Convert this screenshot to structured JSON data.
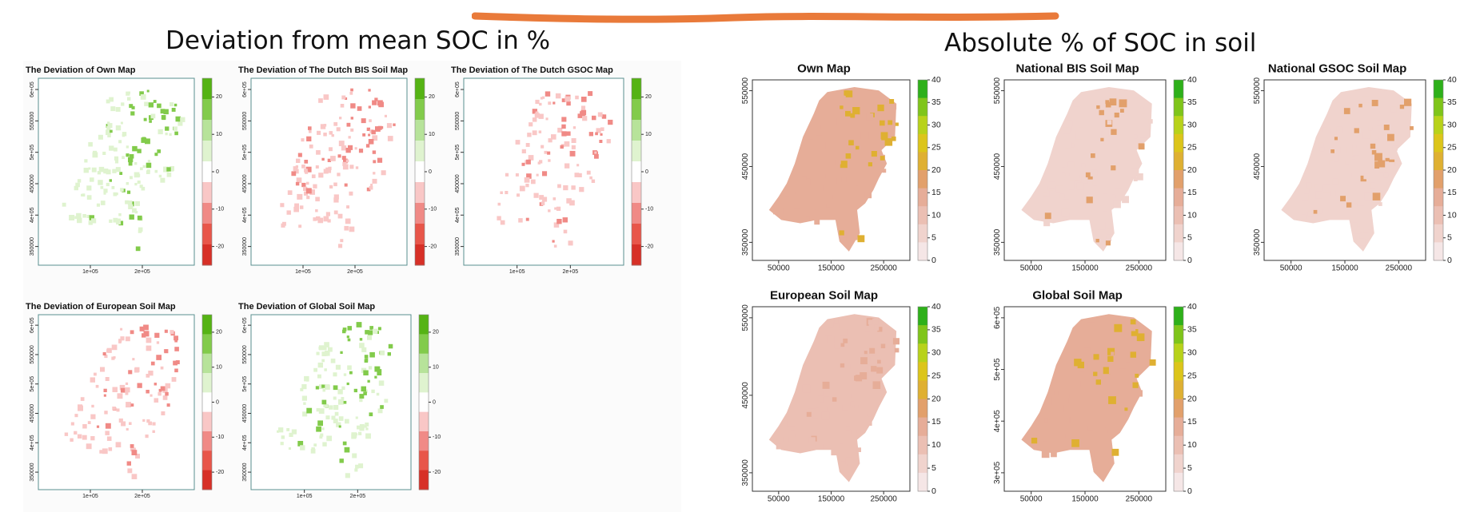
{
  "header": {
    "left_title": "Deviation from mean SOC in %",
    "right_title": "Absolute % of SOC in soil",
    "accent_stroke_color": "#e97a3a"
  },
  "colors": {
    "deviation_scale": [
      "#d73027",
      "#e8564a",
      "#f08a86",
      "#f9c7c6",
      "#ffffff",
      "#dff3cf",
      "#b7e39a",
      "#82cb4b",
      "#55b314"
    ],
    "absolute_scale": [
      "#f5e6e6",
      "#f0d3cd",
      "#ebbfb3",
      "#e6ad98",
      "#e2a06b",
      "#dfb032",
      "#dcc51a",
      "#b8d21a",
      "#7fc51a",
      "#2eb01a"
    ]
  },
  "chart_data": [
    {
      "id": "dev-own",
      "type": "heatmap",
      "title": "The Deviation of Own Map",
      "colorbar": {
        "ticks": [
          "20",
          "10",
          "0",
          "-10",
          "-20"
        ],
        "range": [
          -25,
          25
        ]
      },
      "xaxis": {
        "ticks": [
          "1e+05",
          "2e+05"
        ],
        "values": [
          100000,
          200000
        ]
      },
      "yaxis": {
        "ticks": [
          "6e+05",
          "550000",
          "5e+05",
          "450000",
          "4e+05",
          "350000"
        ]
      },
      "dominant": "green"
    },
    {
      "id": "dev-bis",
      "type": "heatmap",
      "title": "The Deviation of The Dutch BIS Soil Map",
      "colorbar": {
        "ticks": [
          "20",
          "10",
          "0",
          "-10",
          "-20"
        ],
        "range": [
          -25,
          25
        ]
      },
      "xaxis": {
        "ticks": [
          "1e+05",
          "2e+05"
        ],
        "values": [
          100000,
          200000
        ]
      },
      "yaxis": {
        "ticks": [
          "6e+05",
          "550000",
          "5e+05",
          "450000",
          "4e+05",
          "350000"
        ]
      },
      "dominant": "red"
    },
    {
      "id": "dev-gsoc",
      "type": "heatmap",
      "title": "The Deviation of The Dutch GSOC Map",
      "colorbar": {
        "ticks": [
          "20",
          "10",
          "0",
          "-10",
          "-20"
        ],
        "range": [
          -25,
          25
        ]
      },
      "xaxis": {
        "ticks": [
          "1e+05",
          "2e+05"
        ],
        "values": [
          100000,
          200000
        ]
      },
      "yaxis": {
        "ticks": [
          "6e+05",
          "550000",
          "5e+05",
          "450000",
          "4e+05",
          "350000"
        ]
      },
      "dominant": "red"
    },
    {
      "id": "dev-eu",
      "type": "heatmap",
      "title": "The Deviation of European Soil Map",
      "colorbar": {
        "ticks": [
          "20",
          "10",
          "0",
          "-10",
          "-20"
        ],
        "range": [
          -25,
          25
        ]
      },
      "xaxis": {
        "ticks": [
          "1e+05",
          "2e+05"
        ],
        "values": [
          100000,
          200000
        ]
      },
      "yaxis": {
        "ticks": [
          "6e+05",
          "550000",
          "5e+05",
          "450000",
          "4e+05",
          "350000"
        ]
      },
      "dominant": "red"
    },
    {
      "id": "dev-global",
      "type": "heatmap",
      "title": "The Deviation of Global Soil Map",
      "colorbar": {
        "ticks": [
          "20",
          "10",
          "0",
          "-10",
          "-20"
        ],
        "range": [
          -25,
          25
        ]
      },
      "xaxis": {
        "ticks": [
          "1e+05",
          "2e+05"
        ],
        "values": [
          100000,
          200000
        ]
      },
      "yaxis": {
        "ticks": [
          "6e+05",
          "550000",
          "5e+05",
          "450000",
          "4e+05",
          "350000"
        ]
      },
      "dominant": "green"
    },
    {
      "id": "abs-own",
      "type": "heatmap",
      "title": "Own Map",
      "colorbar": {
        "ticks": [
          "40",
          "35",
          "30",
          "25",
          "20",
          "15",
          "10",
          "5",
          "0"
        ],
        "range": [
          0,
          40
        ]
      },
      "xaxis": {
        "ticks": [
          "50000",
          "150000",
          "250000"
        ],
        "values": [
          50000,
          150000,
          250000
        ]
      },
      "yaxis": {
        "ticks": [
          "550000",
          "450000",
          "350000"
        ]
      },
      "dominant": "orange"
    },
    {
      "id": "abs-bis",
      "type": "heatmap",
      "title": "National BIS Soil Map",
      "colorbar": {
        "ticks": [
          "40",
          "35",
          "30",
          "25",
          "20",
          "15",
          "10",
          "5",
          "0"
        ],
        "range": [
          0,
          40
        ]
      },
      "xaxis": {
        "ticks": [
          "50000",
          "150000",
          "250000"
        ],
        "values": [
          50000,
          150000,
          250000
        ]
      },
      "yaxis": {
        "ticks": [
          "550000",
          "450000",
          "350000"
        ]
      },
      "dominant": "pink"
    },
    {
      "id": "abs-gsoc",
      "type": "heatmap",
      "title": "National GSOC Soil Map",
      "colorbar": {
        "ticks": [
          "40",
          "35",
          "30",
          "25",
          "20",
          "15",
          "10",
          "5",
          "0"
        ],
        "range": [
          0,
          40
        ]
      },
      "xaxis": {
        "ticks": [
          "50000",
          "150000",
          "250000"
        ],
        "values": [
          50000,
          150000,
          250000
        ]
      },
      "yaxis": {
        "ticks": [
          "550000",
          "450000",
          "350000"
        ]
      },
      "dominant": "pink"
    },
    {
      "id": "abs-eu",
      "type": "heatmap",
      "title": "European Soil Map",
      "colorbar": {
        "ticks": [
          "40",
          "35",
          "30",
          "25",
          "20",
          "15",
          "10",
          "5",
          "0"
        ],
        "range": [
          0,
          40
        ]
      },
      "xaxis": {
        "ticks": [
          "50000",
          "150000",
          "250000"
        ],
        "values": [
          50000,
          150000,
          250000
        ]
      },
      "yaxis": {
        "ticks": [
          "550000",
          "450000",
          "350000"
        ]
      },
      "dominant": "salmon"
    },
    {
      "id": "abs-global",
      "type": "heatmap",
      "title": "Global Soil Map",
      "colorbar": {
        "ticks": [
          "40",
          "35",
          "30",
          "25",
          "20",
          "15",
          "10",
          "5",
          "0"
        ],
        "range": [
          0,
          40
        ]
      },
      "xaxis": {
        "ticks": [
          "50000",
          "150000",
          "250000"
        ],
        "values": [
          50000,
          150000,
          250000
        ]
      },
      "yaxis": {
        "ticks": [
          "6e+05",
          "5e+05",
          "4e+05",
          "3e+05"
        ]
      },
      "dominant": "orange"
    }
  ]
}
